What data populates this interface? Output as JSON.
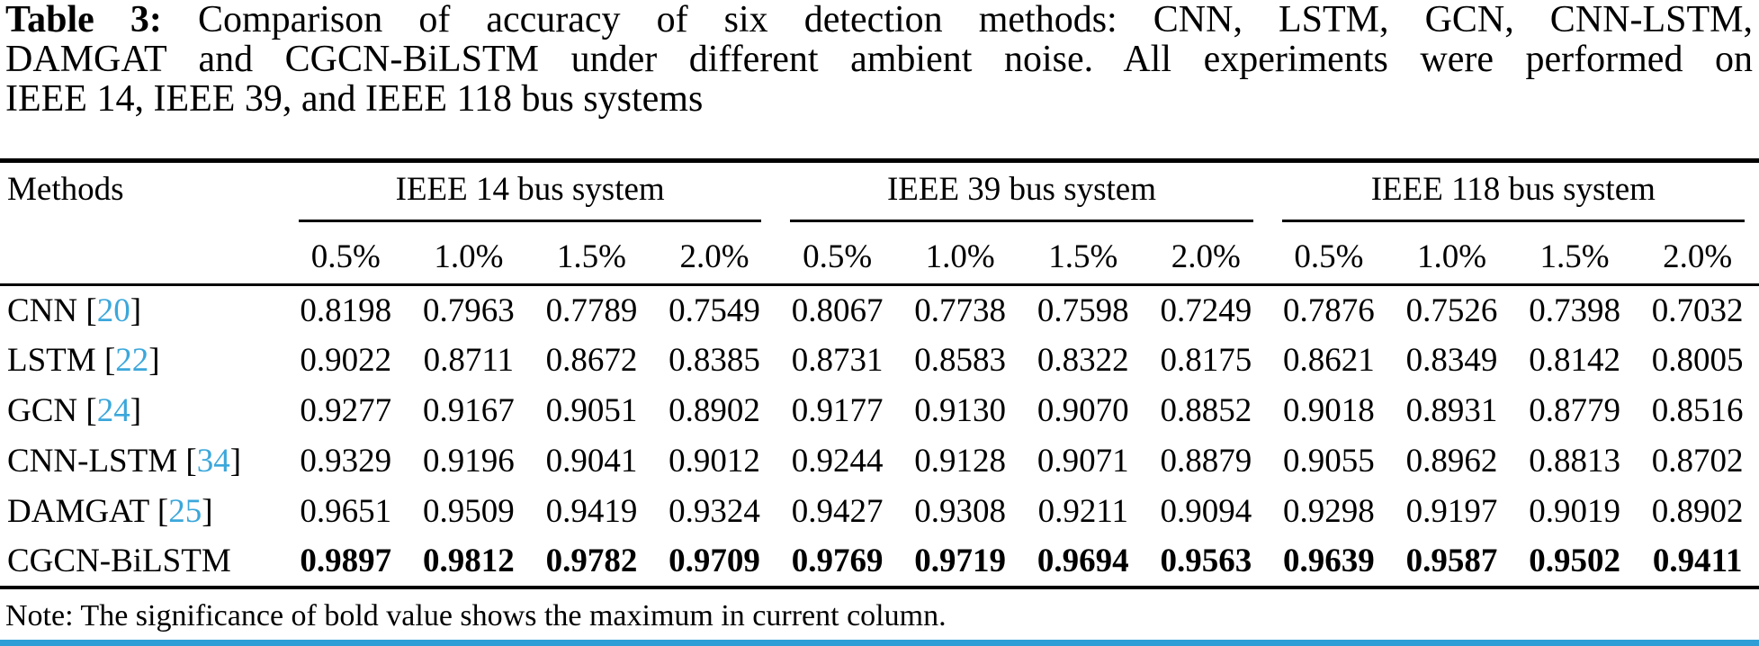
{
  "caption": {
    "label": "Table 3:",
    "line1_rest": "Comparison of accuracy of six detection methods: CNN, LSTM, GCN, CNN-LSTM,",
    "line2": "DAMGAT and CGCN-BiLSTM under different ambient noise. All experiments were performed on",
    "line3": "IEEE 14, IEEE 39, and IEEE 118 bus systems"
  },
  "table": {
    "methods_header": "Methods",
    "bracket_open": "[",
    "bracket_close": "]",
    "groups": [
      {
        "label": "IEEE 14 bus system",
        "noise": [
          "0.5%",
          "1.0%",
          "1.5%",
          "2.0%"
        ]
      },
      {
        "label": "IEEE 39 bus system",
        "noise": [
          "0.5%",
          "1.0%",
          "1.5%",
          "2.0%"
        ]
      },
      {
        "label": "IEEE 118 bus system",
        "noise": [
          "0.5%",
          "1.0%",
          "1.5%",
          "2.0%"
        ]
      }
    ],
    "rows": [
      {
        "method": "CNN",
        "citation": "20",
        "bold": false,
        "values": [
          "0.8198",
          "0.7963",
          "0.7789",
          "0.7549",
          "0.8067",
          "0.7738",
          "0.7598",
          "0.7249",
          "0.7876",
          "0.7526",
          "0.7398",
          "0.7032"
        ]
      },
      {
        "method": "LSTM",
        "citation": "22",
        "bold": false,
        "values": [
          "0.9022",
          "0.8711",
          "0.8672",
          "0.8385",
          "0.8731",
          "0.8583",
          "0.8322",
          "0.8175",
          "0.8621",
          "0.8349",
          "0.8142",
          "0.8005"
        ]
      },
      {
        "method": "GCN",
        "citation": "24",
        "bold": false,
        "values": [
          "0.9277",
          "0.9167",
          "0.9051",
          "0.8902",
          "0.9177",
          "0.9130",
          "0.9070",
          "0.8852",
          "0.9018",
          "0.8931",
          "0.8779",
          "0.8516"
        ]
      },
      {
        "method": "CNN-LSTM",
        "citation": "34",
        "bold": false,
        "values": [
          "0.9329",
          "0.9196",
          "0.9041",
          "0.9012",
          "0.9244",
          "0.9128",
          "0.9071",
          "0.8879",
          "0.9055",
          "0.8962",
          "0.8813",
          "0.8702"
        ]
      },
      {
        "method": "DAMGAT",
        "citation": "25",
        "bold": false,
        "values": [
          "0.9651",
          "0.9509",
          "0.9419",
          "0.9324",
          "0.9427",
          "0.9308",
          "0.9211",
          "0.9094",
          "0.9298",
          "0.9197",
          "0.9019",
          "0.8902"
        ]
      },
      {
        "method": "CGCN-BiLSTM",
        "citation": null,
        "bold": true,
        "values": [
          "0.9897",
          "0.9812",
          "0.9782",
          "0.9709",
          "0.9769",
          "0.9719",
          "0.9694",
          "0.9563",
          "0.9639",
          "0.9587",
          "0.9502",
          "0.9411"
        ]
      }
    ]
  },
  "note": "Note: The significance of bold value shows the maximum in current column.",
  "colors": {
    "citation_blue": "#3ba7db",
    "bottom_bar_blue": "#2d9fd6",
    "text": "#000000",
    "background": "#ffffff"
  }
}
